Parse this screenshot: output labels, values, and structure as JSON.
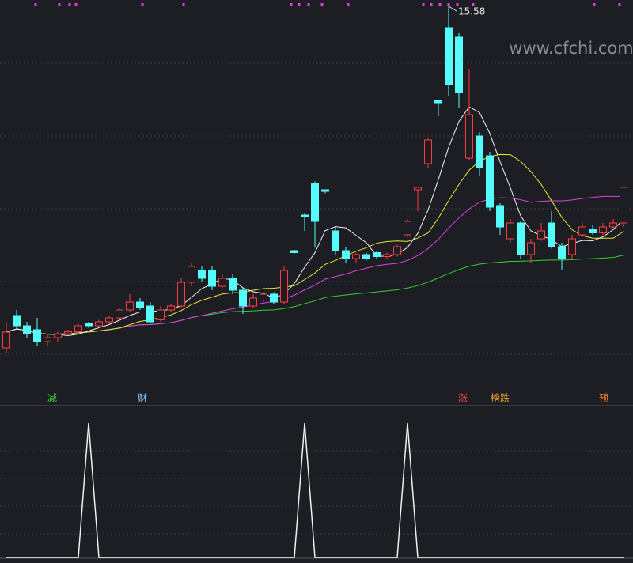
{
  "chart_data": {
    "type": "candlestick",
    "watermark": "www.cfchi.com",
    "up_color": "#ff3c3c",
    "down_color": "#54fcfc",
    "open": [
      6.94,
      7.76,
      7.5,
      7.4,
      7.1,
      7.2,
      7.3,
      7.35,
      7.55,
      7.5,
      7.6,
      7.7,
      7.9,
      8.1,
      8.0,
      7.65,
      7.9,
      8.0,
      8.6,
      8.9,
      8.9,
      8.5,
      8.7,
      8.4,
      8.0,
      8.15,
      8.3,
      8.1,
      9.4,
      10.3,
      11.1,
      10.94,
      9.9,
      9.4,
      9.2,
      9.3,
      9.35,
      9.25,
      9.3,
      9.8,
      10.94,
      11.6,
      13.2,
      15.04,
      14.8,
      11.74,
      12.3,
      11.8,
      10.54,
      9.7,
      10.1,
      9.3,
      9.7,
      10.1,
      9.5,
      9.3,
      9.8,
      9.95,
      9.85,
      10.0,
      10.1
    ],
    "close": [
      7.34,
      7.5,
      7.3,
      7.1,
      7.2,
      7.3,
      7.35,
      7.5,
      7.5,
      7.6,
      7.7,
      7.9,
      8.1,
      7.95,
      7.6,
      7.9,
      8.0,
      8.6,
      9.0,
      8.7,
      8.5,
      8.7,
      8.4,
      8.0,
      8.2,
      8.3,
      8.1,
      8.9,
      9.35,
      10.25,
      10.14,
      10.9,
      9.4,
      9.2,
      9.3,
      9.2,
      9.25,
      9.3,
      9.5,
      10.14,
      11.0,
      12.2,
      13.14,
      13.6,
      13.4,
      12.84,
      11.5,
      10.5,
      10.0,
      10.1,
      9.3,
      9.6,
      9.9,
      9.5,
      9.2,
      9.7,
      10.0,
      9.85,
      10.0,
      10.1,
      11.0
    ],
    "high": [
      7.6,
      7.9,
      7.6,
      7.7,
      7.3,
      7.35,
      7.4,
      7.55,
      7.6,
      7.65,
      7.75,
      7.95,
      8.3,
      8.2,
      8.1,
      8.0,
      8.05,
      8.7,
      9.1,
      9.0,
      9.0,
      8.8,
      8.8,
      8.45,
      8.3,
      8.35,
      8.35,
      9.0,
      9.42,
      10.35,
      11.15,
      10.95,
      10.0,
      9.5,
      9.35,
      9.35,
      9.4,
      9.35,
      9.55,
      10.2,
      11.0,
      12.25,
      13.2,
      15.58,
      14.9,
      14.0,
      12.4,
      11.9,
      10.6,
      10.2,
      10.15,
      9.7,
      10.1,
      10.4,
      9.6,
      9.8,
      10.1,
      10.05,
      10.1,
      10.2,
      11.0
    ],
    "low": [
      6.8,
      7.4,
      7.2,
      7.0,
      7.0,
      7.1,
      7.25,
      7.3,
      7.45,
      7.45,
      7.55,
      7.65,
      7.85,
      7.9,
      7.55,
      7.6,
      7.85,
      7.95,
      8.5,
      8.6,
      8.4,
      8.45,
      8.3,
      7.8,
      7.95,
      8.1,
      8.05,
      8.05,
      9.33,
      9.9,
      9.5,
      10.85,
      9.3,
      9.1,
      9.1,
      9.15,
      9.2,
      9.2,
      9.25,
      9.75,
      10.4,
      11.5,
      12.8,
      13.3,
      13.0,
      11.7,
      11.3,
      10.4,
      9.8,
      9.6,
      9.2,
      9.1,
      9.65,
      9.45,
      8.9,
      9.2,
      9.75,
      9.8,
      9.8,
      9.95,
      10.0
    ],
    "peak_index": 43,
    "indicator": [
      0,
      0,
      0,
      0,
      0,
      0,
      0,
      0,
      1,
      0,
      0,
      0,
      0,
      0,
      0,
      0,
      0,
      0,
      0,
      0,
      0,
      0,
      0,
      0,
      0,
      0,
      0,
      0,
      0,
      1,
      0,
      0,
      0,
      0,
      0,
      0,
      0,
      0,
      0,
      1,
      0,
      0,
      0,
      0,
      0,
      0,
      0,
      0,
      0,
      0,
      0,
      0,
      0,
      0,
      0,
      0,
      0,
      0,
      0,
      0,
      0
    ],
    "signals": [
      "减",
      "财",
      "涨",
      "榜跌",
      "预"
    ]
  }
}
